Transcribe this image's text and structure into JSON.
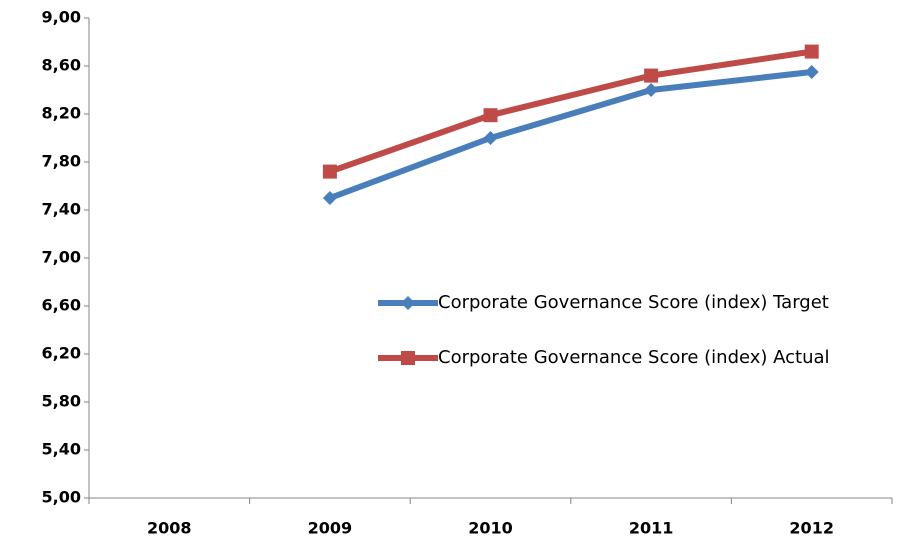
{
  "chart_data": {
    "type": "line",
    "categories": [
      "2008",
      "2009",
      "2010",
      "2011",
      "2012"
    ],
    "series": [
      {
        "name": "Corporate Governance Score (index) Target",
        "color": "#4a7ebb",
        "marker": "diamond",
        "values": [
          null,
          7.5,
          8.0,
          8.4,
          8.55
        ]
      },
      {
        "name": "Corporate Governance Score (index) Actual",
        "color": "#be4b48",
        "marker": "square",
        "values": [
          null,
          7.72,
          8.19,
          8.52,
          8.72
        ]
      }
    ],
    "ylim": [
      5,
      9
    ],
    "yticks": [
      {
        "value": 5,
        "label": "5,00"
      },
      {
        "value": 5.4,
        "label": "5,40"
      },
      {
        "value": 5.8,
        "label": "5,80"
      },
      {
        "value": 6.2,
        "label": "6,20"
      },
      {
        "value": 6.6,
        "label": "6,60"
      },
      {
        "value": 7,
        "label": "7,00"
      },
      {
        "value": 7.4,
        "label": "7,40"
      },
      {
        "value": 7.8,
        "label": "7,80"
      },
      {
        "value": 8.2,
        "label": "8,20"
      },
      {
        "value": 8.6,
        "label": "8,60"
      },
      {
        "value": 9,
        "label": "9,00"
      }
    ],
    "grid": false,
    "legend": "right"
  }
}
